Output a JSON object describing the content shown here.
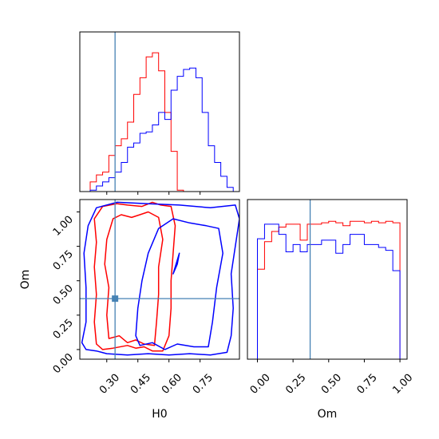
{
  "chart_data": {
    "type": "corner",
    "parameters": [
      "H0",
      "Om"
    ],
    "truth": {
      "H0": 0.34,
      "Om": 0.37
    },
    "truth_color": "#4682b4",
    "series": [
      {
        "color": "#ff0000"
      },
      {
        "color": "#0000ff"
      }
    ],
    "panels": [
      {
        "id": "hist-H0",
        "type": "histogram",
        "xlim": [
          0.17,
          0.94
        ],
        "ylim": [
          0,
          1.15
        ],
        "x_ticks": [
          0.3,
          0.45,
          0.6,
          0.75
        ],
        "x_tick_labels_shown": false,
        "hist": [
          {
            "series": 0,
            "edges": [
              0.22,
              0.25,
              0.28,
              0.31,
              0.34,
              0.37,
              0.4,
              0.43,
              0.46,
              0.49,
              0.52,
              0.55,
              0.58,
              0.61,
              0.64,
              0.67
            ],
            "counts": [
              0.07,
              0.12,
              0.14,
              0.26,
              0.33,
              0.38,
              0.5,
              0.7,
              0.82,
              0.97,
              1.0,
              0.87,
              0.57,
              0.29,
              0.01
            ]
          },
          {
            "series": 1,
            "edges": [
              0.22,
              0.25,
              0.28,
              0.31,
              0.34,
              0.37,
              0.4,
              0.43,
              0.46,
              0.49,
              0.52,
              0.55,
              0.58,
              0.61,
              0.64,
              0.67,
              0.7,
              0.73,
              0.76,
              0.79,
              0.82,
              0.85,
              0.88,
              0.91
            ],
            "counts": [
              0.01,
              0.04,
              0.07,
              0.1,
              0.14,
              0.21,
              0.32,
              0.35,
              0.42,
              0.43,
              0.48,
              0.57,
              0.52,
              0.73,
              0.83,
              0.88,
              0.89,
              0.82,
              0.57,
              0.33,
              0.21,
              0.11,
              0.03
            ]
          }
        ]
      },
      {
        "id": "contour-H0-Om",
        "type": "contour",
        "xlabel": "H0",
        "ylabel": "Om",
        "xlim": [
          0.17,
          0.94
        ],
        "ylim": [
          -0.07,
          1.09
        ],
        "x_ticks": [
          0.3,
          0.45,
          0.6,
          0.75
        ],
        "x_tick_labels": [
          "0.30",
          "0.45",
          "0.60",
          "0.75"
        ],
        "y_ticks": [
          0.0,
          0.25,
          0.5,
          0.75,
          1.0
        ],
        "y_tick_labels": [
          "0.00",
          "0.25",
          "0.50",
          "0.75",
          "1.00"
        ],
        "contours": [
          {
            "series": 0,
            "level": "outer",
            "points": [
              [
                0.25,
                0.04
              ],
              [
                0.24,
                0.2
              ],
              [
                0.25,
                0.4
              ],
              [
                0.24,
                0.6
              ],
              [
                0.25,
                0.78
              ],
              [
                0.24,
                0.95
              ],
              [
                0.28,
                1.04
              ],
              [
                0.35,
                1.06
              ],
              [
                0.4,
                1.05
              ],
              [
                0.47,
                1.04
              ],
              [
                0.52,
                1.07
              ],
              [
                0.56,
                1.05
              ],
              [
                0.61,
                1.04
              ],
              [
                0.63,
                0.9
              ],
              [
                0.62,
                0.7
              ],
              [
                0.61,
                0.5
              ],
              [
                0.61,
                0.3
              ],
              [
                0.6,
                0.1
              ],
              [
                0.57,
                -0.01
              ],
              [
                0.52,
                -0.01
              ],
              [
                0.48,
                0.02
              ],
              [
                0.44,
                0.01
              ],
              [
                0.4,
                0.03
              ],
              [
                0.33,
                0.01
              ],
              [
                0.28,
                0.0
              ],
              [
                0.25,
                0.04
              ]
            ]
          },
          {
            "series": 0,
            "level": "inner",
            "points": [
              [
                0.31,
                0.08
              ],
              [
                0.3,
                0.25
              ],
              [
                0.31,
                0.45
              ],
              [
                0.29,
                0.62
              ],
              [
                0.3,
                0.8
              ],
              [
                0.33,
                0.95
              ],
              [
                0.37,
                0.98
              ],
              [
                0.42,
                0.96
              ],
              [
                0.46,
                0.98
              ],
              [
                0.5,
                1.0
              ],
              [
                0.55,
                0.96
              ],
              [
                0.57,
                0.8
              ],
              [
                0.55,
                0.6
              ],
              [
                0.55,
                0.4
              ],
              [
                0.54,
                0.2
              ],
              [
                0.53,
                0.03
              ],
              [
                0.48,
                0.04
              ],
              [
                0.44,
                0.07
              ],
              [
                0.4,
                0.05
              ],
              [
                0.36,
                0.1
              ],
              [
                0.31,
                0.08
              ]
            ]
          },
          {
            "series": 1,
            "level": "outer",
            "points": [
              [
                0.18,
                0.05
              ],
              [
                0.2,
                0.2
              ],
              [
                0.2,
                0.45
              ],
              [
                0.19,
                0.7
              ],
              [
                0.21,
                0.9
              ],
              [
                0.25,
                1.03
              ],
              [
                0.35,
                1.07
              ],
              [
                0.5,
                1.06
              ],
              [
                0.65,
                1.05
              ],
              [
                0.8,
                1.03
              ],
              [
                0.92,
                1.05
              ],
              [
                0.94,
                0.95
              ],
              [
                0.92,
                0.75
              ],
              [
                0.9,
                0.55
              ],
              [
                0.91,
                0.3
              ],
              [
                0.9,
                0.1
              ],
              [
                0.88,
                -0.02
              ],
              [
                0.8,
                -0.04
              ],
              [
                0.7,
                -0.03
              ],
              [
                0.6,
                -0.04
              ],
              [
                0.5,
                -0.03
              ],
              [
                0.4,
                -0.04
              ],
              [
                0.3,
                -0.03
              ],
              [
                0.25,
                -0.01
              ],
              [
                0.2,
                0.0
              ],
              [
                0.18,
                0.05
              ]
            ]
          },
          {
            "series": 1,
            "level": "inner",
            "points": [
              [
                0.44,
                0.1
              ],
              [
                0.45,
                0.3
              ],
              [
                0.47,
                0.5
              ],
              [
                0.5,
                0.7
              ],
              [
                0.55,
                0.88
              ],
              [
                0.62,
                0.95
              ],
              [
                0.7,
                0.92
              ],
              [
                0.78,
                0.9
              ],
              [
                0.84,
                0.88
              ],
              [
                0.86,
                0.7
              ],
              [
                0.83,
                0.45
              ],
              [
                0.81,
                0.2
              ],
              [
                0.79,
                0.02
              ],
              [
                0.72,
                0.02
              ],
              [
                0.64,
                0.04
              ],
              [
                0.58,
                0.0
              ],
              [
                0.52,
                0.05
              ],
              [
                0.46,
                0.03
              ],
              [
                0.44,
                0.1
              ]
            ]
          },
          {
            "series": 1,
            "level": "island",
            "points": [
              [
                0.62,
                0.55
              ],
              [
                0.64,
                0.62
              ],
              [
                0.65,
                0.7
              ],
              [
                0.63,
                0.6
              ],
              [
                0.62,
                0.55
              ]
            ]
          }
        ]
      },
      {
        "id": "hist-Om",
        "type": "histogram",
        "xlabel": "Om",
        "xlim": [
          -0.07,
          1.05
        ],
        "ylim": [
          0,
          1.1
        ],
        "x_ticks": [
          0.0,
          0.25,
          0.5,
          0.75,
          1.0
        ],
        "x_tick_labels": [
          "0.00",
          "0.25",
          "0.50",
          "0.75",
          "1.00"
        ],
        "hist": [
          {
            "series": 0,
            "edges": [
              0.0,
              0.05,
              0.1,
              0.15,
              0.2,
              0.25,
              0.3,
              0.35,
              0.4,
              0.45,
              0.5,
              0.55,
              0.6,
              0.65,
              0.7,
              0.75,
              0.8,
              0.85,
              0.9,
              0.95,
              1.0
            ],
            "counts": [
              0.62,
              0.81,
              0.88,
              0.91,
              0.93,
              0.93,
              0.82,
              0.93,
              0.93,
              0.94,
              0.95,
              0.94,
              0.92,
              0.95,
              0.95,
              0.94,
              0.95,
              0.94,
              0.95,
              0.94
            ]
          },
          {
            "series": 1,
            "edges": [
              0.0,
              0.05,
              0.1,
              0.15,
              0.2,
              0.25,
              0.3,
              0.35,
              0.4,
              0.45,
              0.5,
              0.55,
              0.6,
              0.65,
              0.7,
              0.75,
              0.8,
              0.85,
              0.9,
              0.95,
              1.0
            ],
            "counts": [
              0.83,
              0.93,
              0.93,
              0.86,
              0.74,
              0.79,
              0.74,
              0.79,
              0.79,
              0.82,
              0.82,
              0.73,
              0.79,
              0.86,
              0.86,
              0.79,
              0.79,
              0.77,
              0.75,
              0.61
            ]
          }
        ]
      }
    ]
  }
}
